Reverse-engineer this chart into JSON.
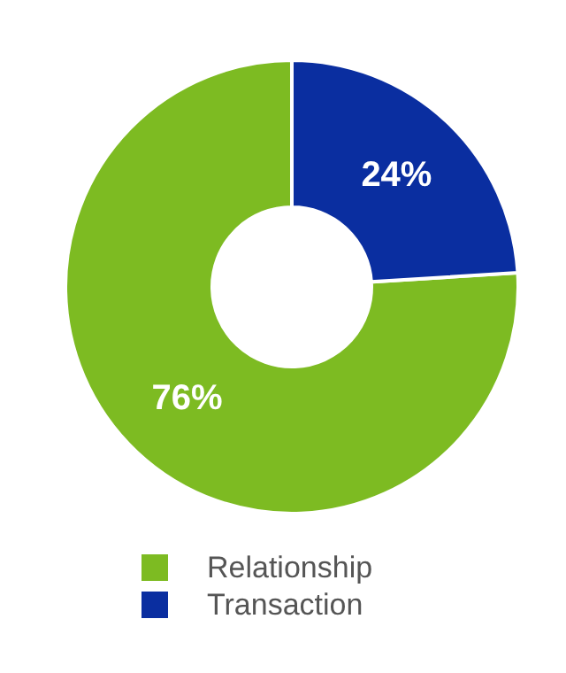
{
  "chart_data": {
    "type": "donut",
    "categories": [
      "Relationship",
      "Transaction"
    ],
    "values": [
      76,
      24
    ],
    "colors": [
      "#7dbb22",
      "#0a2ea0"
    ],
    "value_labels": [
      "76%",
      "24%"
    ],
    "legend": "bottom"
  }
}
